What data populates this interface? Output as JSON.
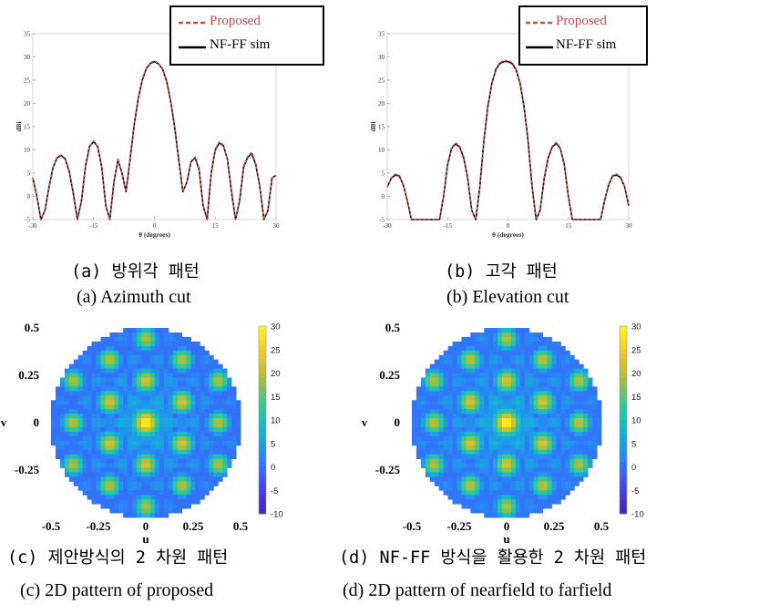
{
  "captions": {
    "a_ko": "(a) 방위각 패턴",
    "a_en": "(a) Azimuth cut",
    "b_ko": "(b) 고각 패턴",
    "b_en": "(b) Elevation cut",
    "c_ko": "(c) 제안방식의 2 차원 패턴",
    "c_en": "(c)  2D pattern of proposed",
    "d_ko": "(d) NF-FF 방식을 활용한 2 차원 패턴",
    "d_en": "(d) 2D pattern of nearfield to farfield"
  },
  "colors": {
    "proposed": "#c0504d",
    "nfff": "#000000",
    "colormap": [
      "#3e26a8",
      "#4743f2",
      "#2d80f9",
      "#12b2d8",
      "#2dc99c",
      "#a5be3a",
      "#f4c52c",
      "#f9fb15"
    ]
  },
  "chart_data": [
    {
      "id": "azimuth",
      "type": "line",
      "xlabel": "θ (degrees)",
      "ylabel": "dBi",
      "xlim": [
        -30,
        30
      ],
      "ylim": [
        -5,
        35
      ],
      "x_ticks": [
        "-30",
        "-15",
        "0",
        "15",
        "30"
      ],
      "y_ticks": [
        "-5",
        "0",
        "5",
        "10",
        "15",
        "20",
        "25",
        "30",
        "35"
      ],
      "legend": [
        "Proposed",
        "NF-FF sim"
      ],
      "legend_position": "top-right",
      "series": [
        {
          "name": "Proposed",
          "style": "dashed",
          "x": [
            -30,
            -29,
            -28,
            -27,
            -26,
            -25,
            -24,
            -23,
            -22,
            -21,
            -20,
            -19,
            -18,
            -17,
            -16,
            -15,
            -14,
            -13,
            -12,
            -11,
            -10,
            -9,
            -8,
            -7,
            -6,
            -5,
            -4,
            -3,
            -2,
            -1,
            0,
            1,
            2,
            3,
            4,
            5,
            6,
            7,
            8,
            9,
            10,
            11,
            12,
            13,
            14,
            15,
            16,
            17,
            18,
            19,
            20,
            21,
            22,
            23,
            24,
            25,
            26,
            27,
            28,
            29,
            30
          ],
          "y": [
            4,
            0,
            -5,
            -3,
            2,
            6.3,
            8.4,
            8.9,
            8.2,
            5.5,
            0.8,
            -5,
            -1,
            6.7,
            10.8,
            11.9,
            10.8,
            6.5,
            -2,
            -5,
            3,
            8,
            5,
            1,
            8.2,
            15.5,
            21.2,
            25.2,
            27.6,
            28.7,
            29.2,
            28.6,
            27.5,
            25,
            20.7,
            15,
            8,
            1,
            3,
            7.5,
            8.5,
            6,
            -2,
            -5,
            5,
            10.2,
            11.7,
            11,
            8,
            1,
            -5,
            -1,
            6.5,
            8.6,
            9.5,
            7,
            2,
            -5,
            -3,
            4,
            4.5
          ]
        },
        {
          "name": "NF-FF sim",
          "style": "solid",
          "x": [
            -30,
            -29,
            -28,
            -27,
            -26,
            -25,
            -24,
            -23,
            -22,
            -21,
            -20,
            -19,
            -18,
            -17,
            -16,
            -15,
            -14,
            -13,
            -12,
            -11,
            -10,
            -9,
            -8,
            -7,
            -6,
            -5,
            -4,
            -3,
            -2,
            -1,
            0,
            1,
            2,
            3,
            4,
            5,
            6,
            7,
            8,
            9,
            10,
            11,
            12,
            13,
            14,
            15,
            16,
            17,
            18,
            19,
            20,
            21,
            22,
            23,
            24,
            25,
            26,
            27,
            28,
            29,
            30
          ],
          "y": [
            4,
            0,
            -5,
            -3,
            2,
            6.2,
            8.3,
            8.8,
            8.0,
            5.3,
            0.5,
            -5,
            -1,
            6.5,
            10.7,
            11.8,
            10.7,
            6.3,
            -2,
            -5,
            3,
            7.8,
            5,
            1,
            8,
            15.3,
            21,
            25,
            27.5,
            28.6,
            29,
            28.5,
            27.4,
            24.8,
            20.5,
            14.8,
            7.8,
            1,
            3,
            7.4,
            8.3,
            5.8,
            -2,
            -5,
            5,
            10,
            11.5,
            10.9,
            8,
            1,
            -5,
            -1,
            6.3,
            8.4,
            9.2,
            6.8,
            2,
            -5,
            -3,
            4,
            4.5
          ]
        }
      ]
    },
    {
      "id": "elevation",
      "type": "line",
      "xlabel": "θ (degrees)",
      "ylabel": "dBi",
      "xlim": [
        -30,
        30
      ],
      "ylim": [
        -5,
        35
      ],
      "x_ticks": [
        "-30",
        "-15",
        "0",
        "15",
        "30"
      ],
      "y_ticks": [
        "-5",
        "0",
        "5",
        "10",
        "15",
        "20",
        "25",
        "30",
        "35"
      ],
      "legend": [
        "Proposed",
        "NF-FF sim"
      ],
      "legend_position": "top-right",
      "series": [
        {
          "name": "Proposed",
          "style": "dashed",
          "x": [
            -30,
            -29,
            -28,
            -27,
            -26,
            -25,
            -24,
            -23,
            -22,
            -21,
            -20,
            -19,
            -18,
            -17,
            -16,
            -15,
            -14,
            -13,
            -12,
            -11,
            -10,
            -9,
            -8,
            -7,
            -6,
            -5,
            -4,
            -3,
            -2,
            -1,
            0,
            1,
            2,
            3,
            4,
            5,
            6,
            7,
            8,
            9,
            10,
            11,
            12,
            13,
            14,
            15,
            16,
            17,
            18,
            19,
            20,
            21,
            22,
            23,
            24,
            25,
            26,
            27,
            28,
            29,
            30
          ],
          "y": [
            2,
            4,
            4.8,
            4.5,
            2.5,
            -1,
            -5,
            -5,
            -5,
            -5,
            -5,
            -5,
            -5,
            -5,
            0,
            7,
            10.5,
            11.5,
            10.8,
            8.5,
            4,
            -3,
            -5,
            2,
            12,
            19.5,
            24.5,
            27.5,
            28.8,
            29.2,
            29.2,
            28.8,
            27.5,
            24.5,
            19.5,
            12,
            2,
            -5,
            -3,
            4,
            8.5,
            10.8,
            11.6,
            10.5,
            7,
            0,
            -5,
            -5,
            -5,
            -5,
            -5,
            -5,
            -5,
            -5,
            -1,
            2.5,
            4.5,
            4.8,
            4.2,
            2,
            -2
          ]
        },
        {
          "name": "NF-FF sim",
          "style": "solid",
          "x": [
            -30,
            -29,
            -28,
            -27,
            -26,
            -25,
            -24,
            -23,
            -22,
            -21,
            -20,
            -19,
            -18,
            -17,
            -16,
            -15,
            -14,
            -13,
            -12,
            -11,
            -10,
            -9,
            -8,
            -7,
            -6,
            -5,
            -4,
            -3,
            -2,
            -1,
            0,
            1,
            2,
            3,
            4,
            5,
            6,
            7,
            8,
            9,
            10,
            11,
            12,
            13,
            14,
            15,
            16,
            17,
            18,
            19,
            20,
            21,
            22,
            23,
            24,
            25,
            26,
            27,
            28,
            29,
            30
          ],
          "y": [
            2,
            3.9,
            4.6,
            4.4,
            2.4,
            -1,
            -5,
            -5,
            -5,
            -5,
            -5,
            -5,
            -5,
            -5,
            0,
            6.8,
            10.3,
            11.3,
            10.6,
            8.3,
            3.8,
            -3,
            -5,
            2,
            11.8,
            19.3,
            24.3,
            27.3,
            28.6,
            29,
            29,
            28.6,
            27.3,
            24.3,
            19.3,
            11.8,
            2,
            -5,
            -3,
            3.8,
            8.3,
            10.6,
            11.4,
            10.3,
            6.8,
            0,
            -5,
            -5,
            -5,
            -5,
            -5,
            -5,
            -5,
            -5,
            -1,
            2.4,
            4.4,
            4.6,
            4,
            2,
            -2
          ]
        }
      ]
    },
    {
      "id": "proposed_2d",
      "type": "heatmap",
      "xlabel": "u",
      "ylabel": "v",
      "xlim": [
        -0.5,
        0.5
      ],
      "ylim": [
        -0.5,
        0.5
      ],
      "x_ticks": [
        "-0.5",
        "-0.25",
        "0",
        "0.25",
        "0.5"
      ],
      "y_ticks": [
        "0.5",
        "0.25",
        "0",
        "-0.25"
      ],
      "colorbar_ticks": [
        "30",
        "25",
        "20",
        "15",
        "10",
        "5",
        "0",
        "-5",
        "-10"
      ],
      "colorbar_range": [
        -10,
        30
      ]
    },
    {
      "id": "nfff_2d",
      "type": "heatmap",
      "xlabel": "u",
      "ylabel": "v",
      "xlim": [
        -0.5,
        0.5
      ],
      "ylim": [
        -0.5,
        0.5
      ],
      "x_ticks": [
        "-0.5",
        "-0.25",
        "0",
        "0.25",
        "0.5"
      ],
      "y_ticks": [
        "0.5",
        "0.25",
        "0",
        "-0.25"
      ],
      "colorbar_ticks": [
        "30",
        "25",
        "20",
        "15",
        "10",
        "5",
        "0",
        "-5",
        "-10"
      ],
      "colorbar_range": [
        -10,
        30
      ]
    }
  ]
}
